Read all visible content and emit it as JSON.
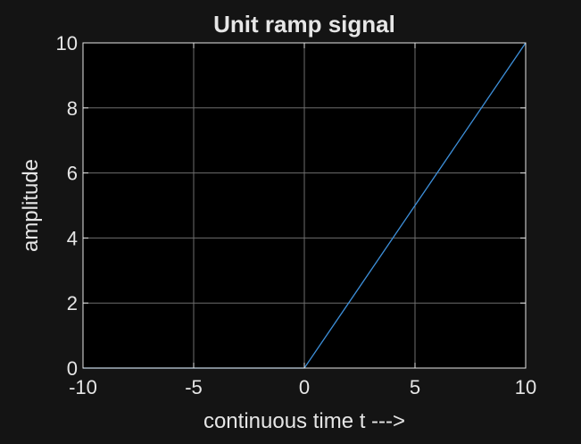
{
  "colors": {
    "background": "#141414",
    "axes_background": "#000000",
    "axis": "#e6e6e6",
    "grid": "#6e6e6e",
    "text": "#e6e6e6",
    "series": "#3d8fd9"
  },
  "chart_data": {
    "type": "line",
    "title": "Unit ramp signal",
    "xlabel": "continuous time t --->",
    "ylabel": "amplitude",
    "xlim": [
      -10,
      10
    ],
    "ylim": [
      0,
      10
    ],
    "xticks": [
      -10,
      -5,
      0,
      5,
      10
    ],
    "yticks": [
      0,
      2,
      4,
      6,
      8,
      10
    ],
    "grid": true,
    "series": [
      {
        "x": [
          -10,
          0,
          10
        ],
        "y": [
          0,
          0,
          10
        ]
      }
    ]
  }
}
